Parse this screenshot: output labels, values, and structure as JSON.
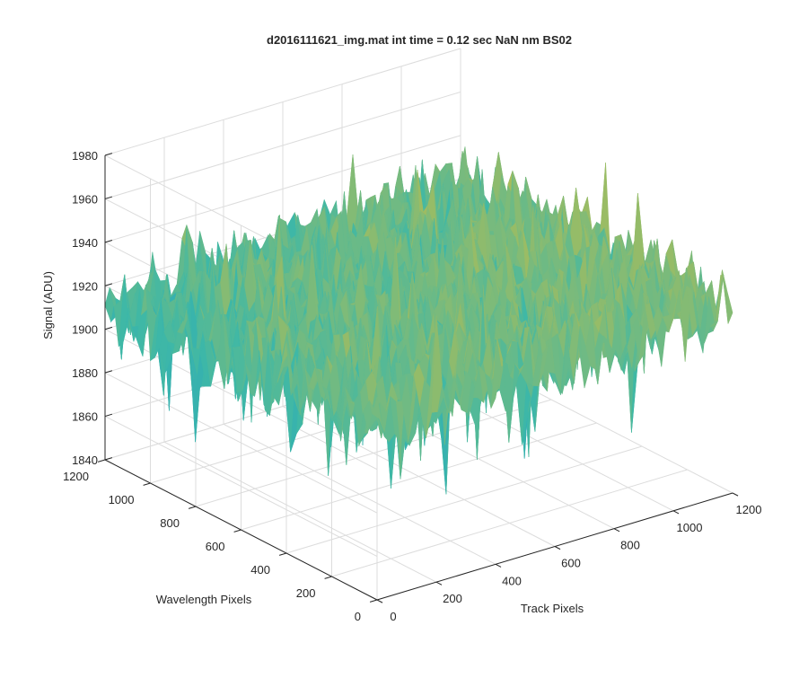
{
  "chart_data": {
    "type": "surface3d",
    "title": "d2016111621_img.mat int time = 0.12 sec  NaN nm BS02",
    "xlabel": "Track Pixels",
    "ylabel": "Wavelength Pixels",
    "zlabel": "Signal (ADU)",
    "xlim": [
      0,
      1200
    ],
    "ylim": [
      0,
      1200
    ],
    "zlim": [
      1840,
      1980
    ],
    "xticks": [
      "0",
      "200",
      "400",
      "600",
      "800",
      "1000",
      "1200"
    ],
    "yticks": [
      "0",
      "200",
      "400",
      "600",
      "800",
      "1000",
      "1200"
    ],
    "zticks": [
      "1840",
      "1860",
      "1880",
      "1900",
      "1920",
      "1940",
      "1960",
      "1980"
    ],
    "grid": true,
    "colormap": "parula",
    "surface_summary": {
      "data_extent_x": [
        0,
        1200
      ],
      "data_extent_y": [
        0,
        1200
      ],
      "mean_signal": 1920,
      "noise_range": [
        1855,
        1960
      ],
      "description_tendency": "noisy surface, lower values toward low track / high wavelength corner"
    },
    "colors": {
      "low": "#1196d8",
      "mid": "#3fb8a6",
      "high": "#e9bf2c",
      "grid": "#dcdcdc",
      "axis": "#262626"
    }
  }
}
